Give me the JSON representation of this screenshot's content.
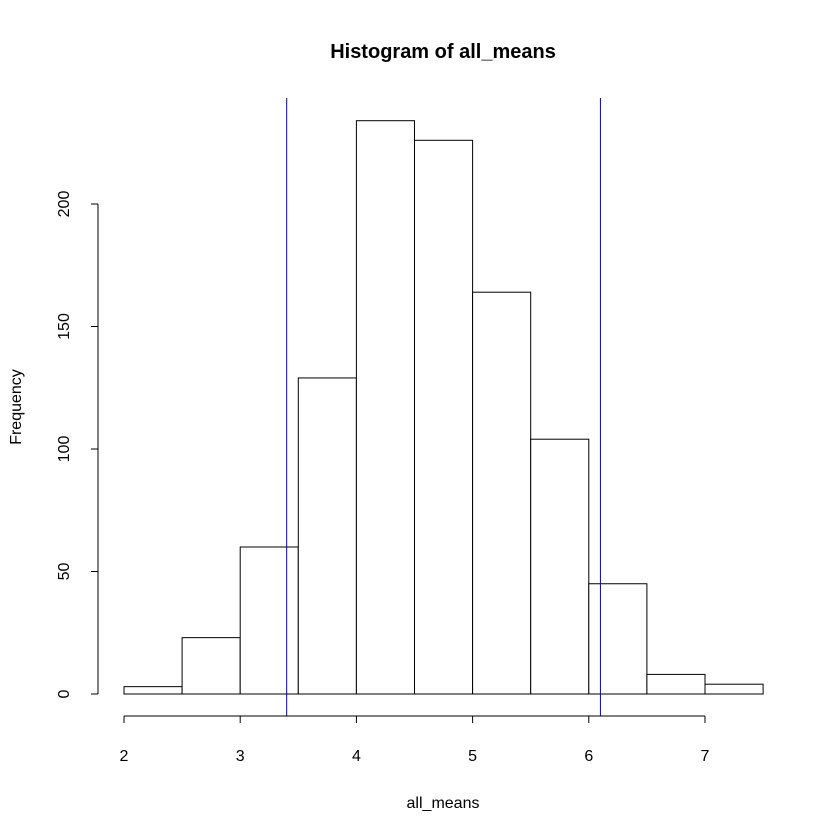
{
  "chart_data": {
    "type": "bar",
    "title": "Histogram of all_means",
    "xlabel": "all_means",
    "ylabel": "Frequency",
    "bins": [
      {
        "from": 2.0,
        "to": 2.5,
        "count": 3
      },
      {
        "from": 2.5,
        "to": 3.0,
        "count": 23
      },
      {
        "from": 3.0,
        "to": 3.5,
        "count": 60
      },
      {
        "from": 3.5,
        "to": 4.0,
        "count": 129
      },
      {
        "from": 4.0,
        "to": 4.5,
        "count": 234
      },
      {
        "from": 4.5,
        "to": 5.0,
        "count": 226
      },
      {
        "from": 5.0,
        "to": 5.5,
        "count": 164
      },
      {
        "from": 5.5,
        "to": 6.0,
        "count": 104
      },
      {
        "from": 6.0,
        "to": 6.5,
        "count": 45
      },
      {
        "from": 6.5,
        "to": 7.0,
        "count": 8
      },
      {
        "from": 7.0,
        "to": 7.5,
        "count": 4
      }
    ],
    "xlim": [
      2,
      7.5
    ],
    "ylim": [
      0,
      234
    ],
    "x_ticks": [
      "2",
      "3",
      "4",
      "5",
      "6",
      "7"
    ],
    "y_ticks": [
      "0",
      "50",
      "100",
      "150",
      "200"
    ],
    "vertical_lines": [
      {
        "x": 3.4,
        "color": "#0000cc"
      },
      {
        "x": 6.1,
        "color": "#0000cc"
      }
    ],
    "grid": false,
    "legend": "none"
  }
}
